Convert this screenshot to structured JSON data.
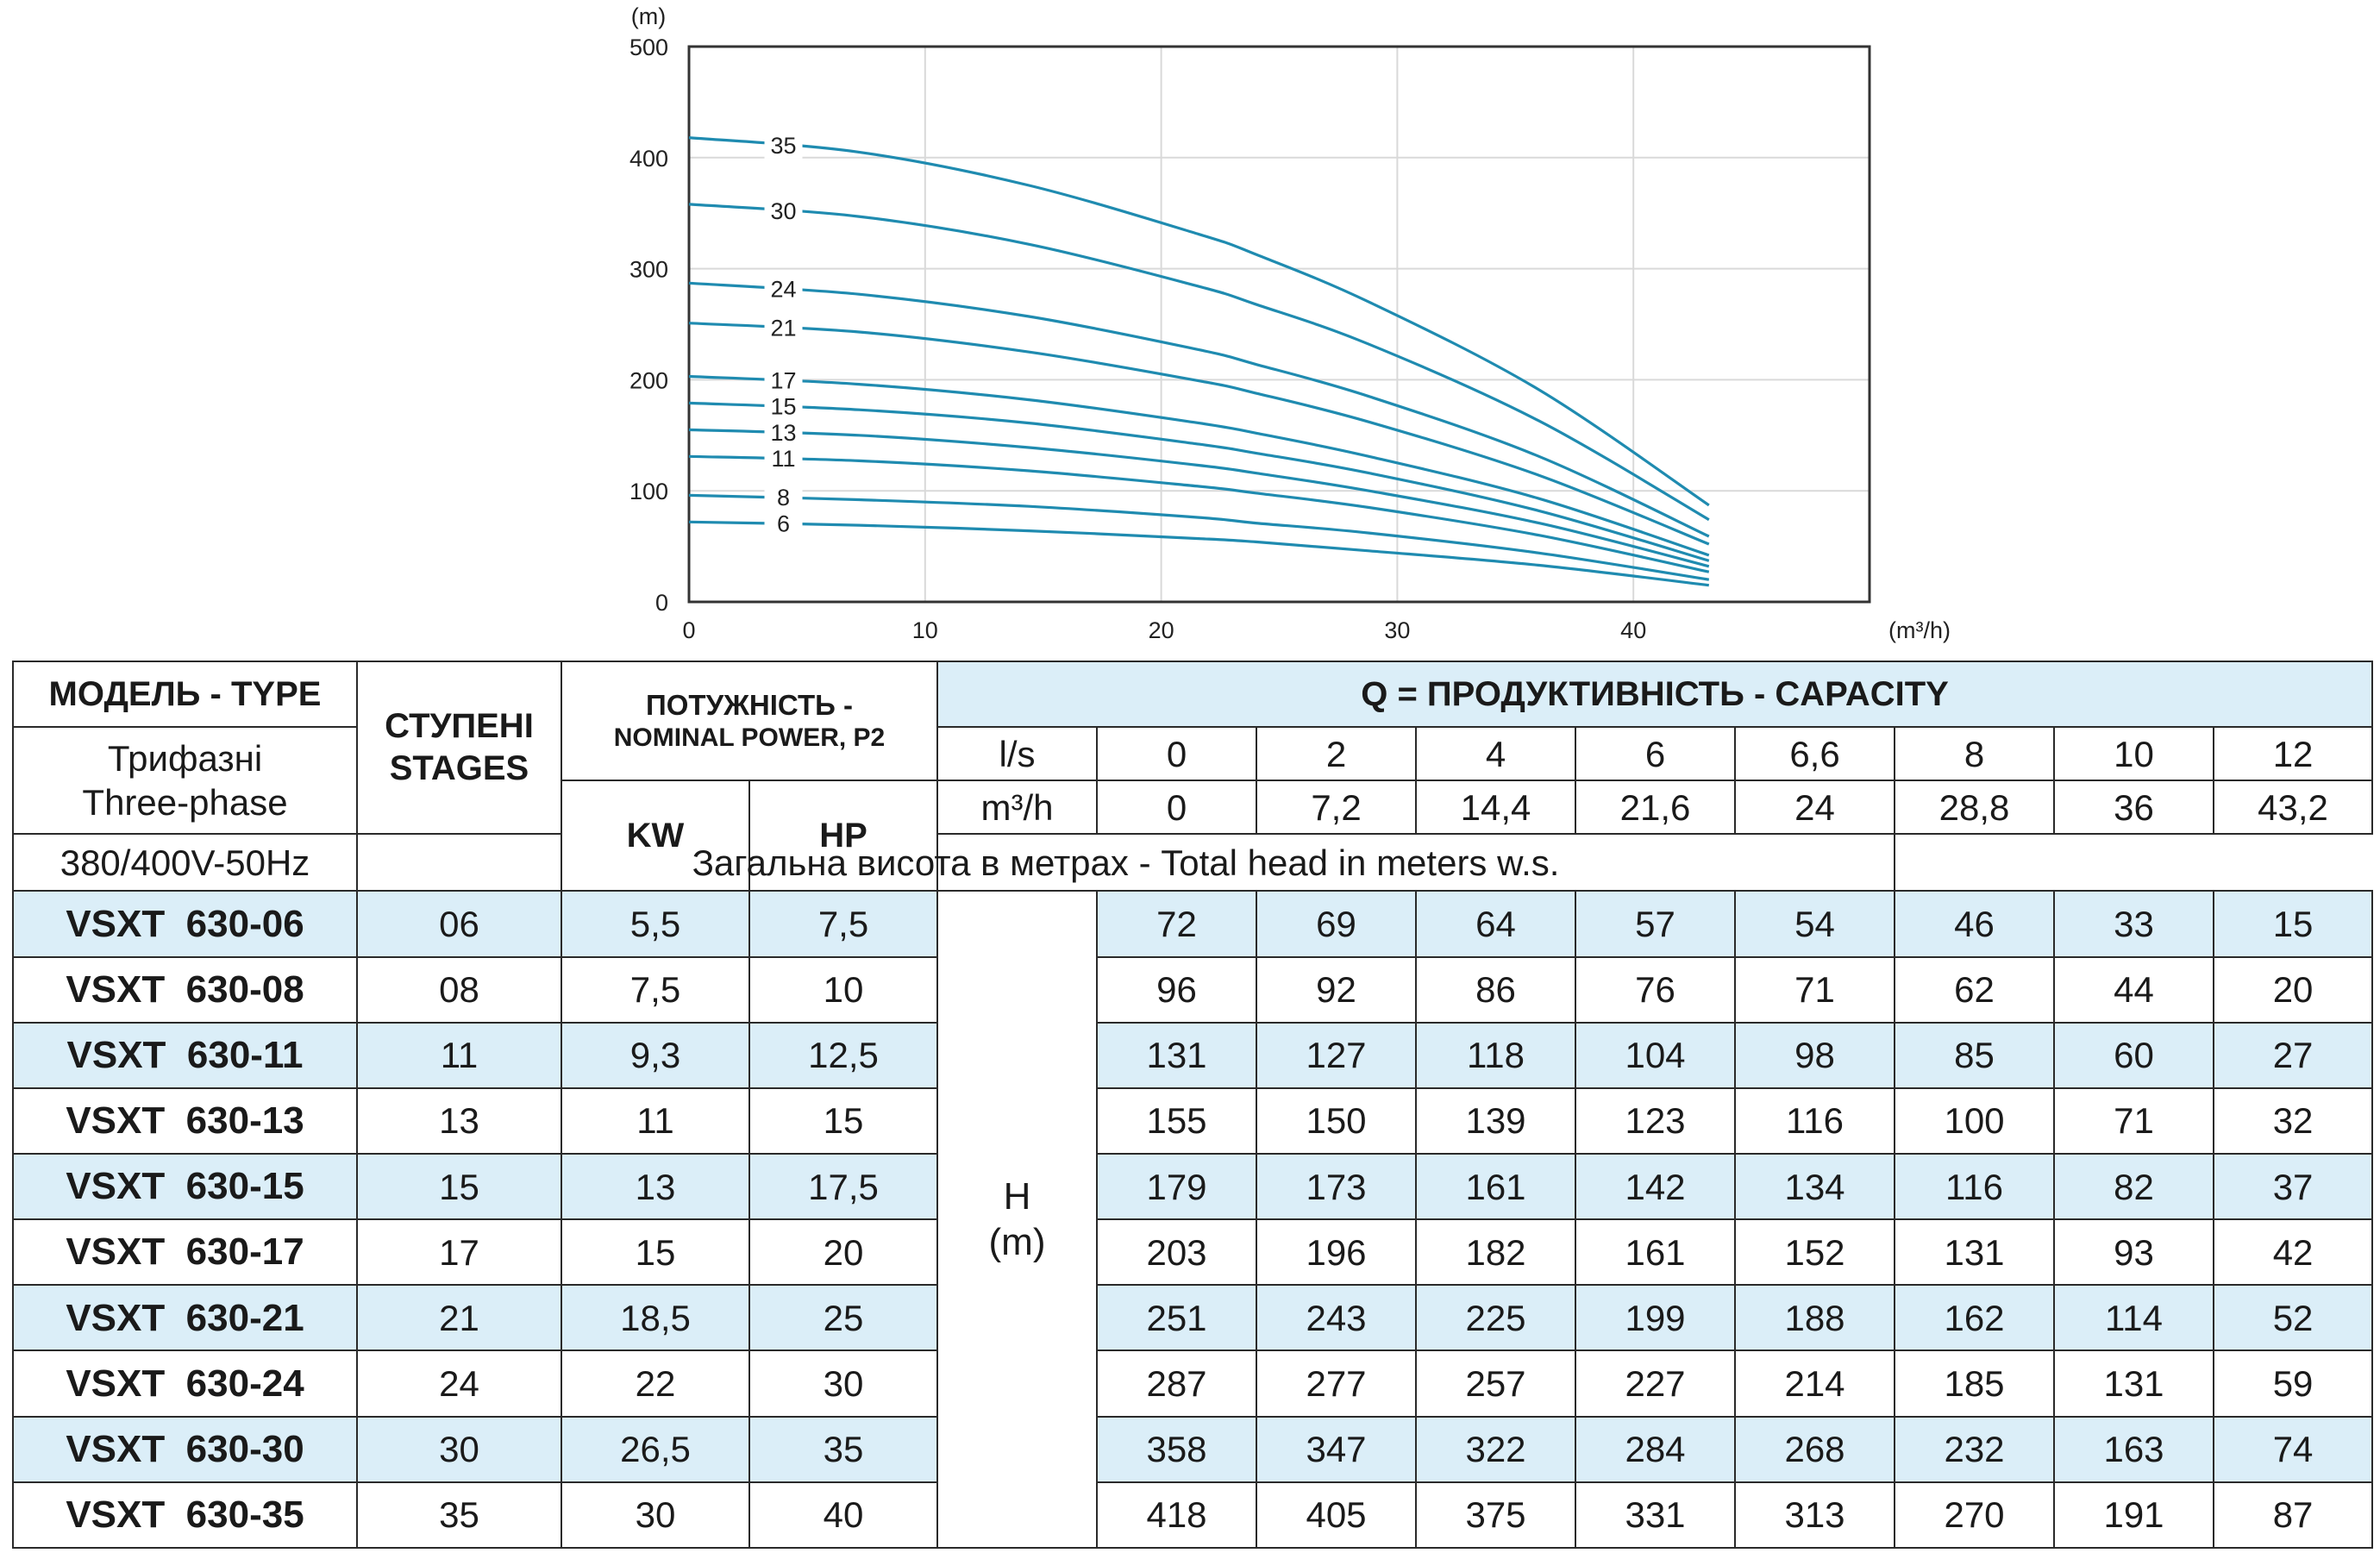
{
  "chart_data": {
    "type": "line",
    "y_unit": "(m)",
    "x_unit": "(m³/h)",
    "xlim": [
      0,
      50
    ],
    "ylim": [
      0,
      500
    ],
    "x_ticks": [
      "0",
      "10",
      "20",
      "30",
      "40"
    ],
    "y_ticks": [
      "0",
      "100",
      "200",
      "300",
      "400",
      "500"
    ],
    "grid": true,
    "x": [
      0,
      7.2,
      14.4,
      21.6,
      24,
      28.8,
      36,
      43.2
    ],
    "series": [
      {
        "name": "35",
        "values": [
          418,
          405,
          375,
          331,
          313,
          270,
          191,
          87
        ]
      },
      {
        "name": "30",
        "values": [
          358,
          347,
          322,
          284,
          268,
          232,
          163,
          74
        ]
      },
      {
        "name": "24",
        "values": [
          287,
          277,
          257,
          227,
          214,
          185,
          131,
          59
        ]
      },
      {
        "name": "21",
        "values": [
          251,
          243,
          225,
          199,
          188,
          162,
          114,
          52
        ]
      },
      {
        "name": "17",
        "values": [
          203,
          196,
          182,
          161,
          152,
          131,
          93,
          42
        ]
      },
      {
        "name": "15",
        "values": [
          179,
          173,
          161,
          142,
          134,
          116,
          82,
          37
        ]
      },
      {
        "name": "13",
        "values": [
          155,
          150,
          139,
          123,
          116,
          100,
          71,
          32
        ]
      },
      {
        "name": "11",
        "values": [
          131,
          127,
          118,
          104,
          98,
          85,
          60,
          27
        ]
      },
      {
        "name": "8",
        "values": [
          96,
          92,
          86,
          76,
          71,
          62,
          44,
          20
        ]
      },
      {
        "name": "6",
        "values": [
          72,
          69,
          64,
          57,
          54,
          46,
          33,
          15
        ]
      }
    ],
    "line_color": "#1f8bb0",
    "grid_color": "#d9d9d9"
  },
  "table": {
    "model_header": "МОДЕЛЬ - TYPE",
    "phase_ua": "Трифазні",
    "phase_en": "Three-phase",
    "voltage": "380/400V-50Hz",
    "stages_ua": "СТУПЕНІ",
    "stages_en": "STAGES",
    "power_ua": "ПОТУЖНІСТЬ -",
    "power_en": "NOMINAL POWER, P2",
    "kw": "KW",
    "hp": "HP",
    "capacity_header": "Q = ПРОДУКТИВНІСТЬ - CAPACITY",
    "ls_label": "l/s",
    "ls_values": [
      "0",
      "2",
      "4",
      "6",
      "6,6",
      "8",
      "10",
      "12"
    ],
    "m3h_label": "m³/h",
    "m3h_values": [
      "0",
      "7,2",
      "14,4",
      "21,6",
      "24",
      "28,8",
      "36",
      "43,2"
    ],
    "total_head": "Загальна висота в метрах - Total head in meters w.s.",
    "h_label": "H",
    "h_unit": "(m)",
    "shade_color": "#dbeef8",
    "rows": [
      {
        "model": "VSXT  630-06",
        "stages": "06",
        "kw": "5,5",
        "hp": "7,5",
        "heads": [
          "72",
          "69",
          "64",
          "57",
          "54",
          "46",
          "33",
          "15"
        ]
      },
      {
        "model": "VSXT  630-08",
        "stages": "08",
        "kw": "7,5",
        "hp": "10",
        "heads": [
          "96",
          "92",
          "86",
          "76",
          "71",
          "62",
          "44",
          "20"
        ]
      },
      {
        "model": "VSXT  630-11",
        "stages": "11",
        "kw": "9,3",
        "hp": "12,5",
        "heads": [
          "131",
          "127",
          "118",
          "104",
          "98",
          "85",
          "60",
          "27"
        ]
      },
      {
        "model": "VSXT  630-13",
        "stages": "13",
        "kw": "11",
        "hp": "15",
        "heads": [
          "155",
          "150",
          "139",
          "123",
          "116",
          "100",
          "71",
          "32"
        ]
      },
      {
        "model": "VSXT  630-15",
        "stages": "15",
        "kw": "13",
        "hp": "17,5",
        "heads": [
          "179",
          "173",
          "161",
          "142",
          "134",
          "116",
          "82",
          "37"
        ]
      },
      {
        "model": "VSXT  630-17",
        "stages": "17",
        "kw": "15",
        "hp": "20",
        "heads": [
          "203",
          "196",
          "182",
          "161",
          "152",
          "131",
          "93",
          "42"
        ]
      },
      {
        "model": "VSXT  630-21",
        "stages": "21",
        "kw": "18,5",
        "hp": "25",
        "heads": [
          "251",
          "243",
          "225",
          "199",
          "188",
          "162",
          "114",
          "52"
        ]
      },
      {
        "model": "VSXT  630-24",
        "stages": "24",
        "kw": "22",
        "hp": "30",
        "heads": [
          "287",
          "277",
          "257",
          "227",
          "214",
          "185",
          "131",
          "59"
        ]
      },
      {
        "model": "VSXT  630-30",
        "stages": "30",
        "kw": "26,5",
        "hp": "35",
        "heads": [
          "358",
          "347",
          "322",
          "284",
          "268",
          "232",
          "163",
          "74"
        ]
      },
      {
        "model": "VSXT  630-35",
        "stages": "35",
        "kw": "30",
        "hp": "40",
        "heads": [
          "418",
          "405",
          "375",
          "331",
          "313",
          "270",
          "191",
          "87"
        ]
      }
    ]
  }
}
